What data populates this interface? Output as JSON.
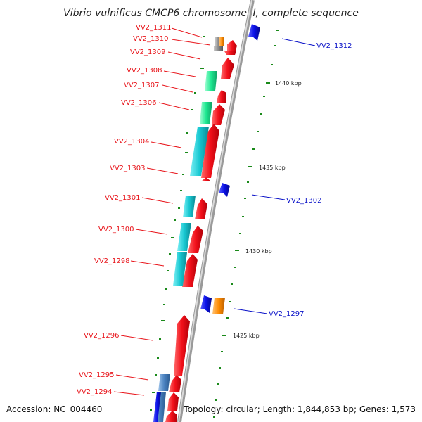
{
  "title": "Vibrio vulnificus CMCP6 chromosome II, complete sequence",
  "accession": "Accession: NC_004460",
  "topology": "Topology: circular; Length: 1,844,853 bp; Genes: 1,573",
  "tick_labels": [
    "1440 kbp",
    "1435 kbp",
    "1430 kbp",
    "1425 kbp"
  ],
  "labels_left": [
    "VV2_1311",
    "VV2_1310",
    "VV2_1309",
    "VV2_1308",
    "VV2_1307",
    "VV2_1306",
    "VV2_1304",
    "VV2_1303",
    "VV2_1301",
    "VV2_1300",
    "VV2_1298",
    "VV2_1296",
    "VV2_1295",
    "VV2_1294"
  ],
  "labels_right": [
    "VV2_1312",
    "VV2_1302",
    "VV2_1297"
  ],
  "colors": {
    "label_left": "#e8141a",
    "label_right": "#0a12c8",
    "forward_cds": "#f2101a",
    "blue_cds": "#0a10e6",
    "orange_cds": "#ff8c00",
    "cyan_cds": "#18c8d2",
    "green_cds": "#1ee890",
    "steel_cds": "#4a82c0",
    "gray_cds": "#808080",
    "backbone": "#9a9a9a",
    "tick": "#1a8a1a"
  }
}
